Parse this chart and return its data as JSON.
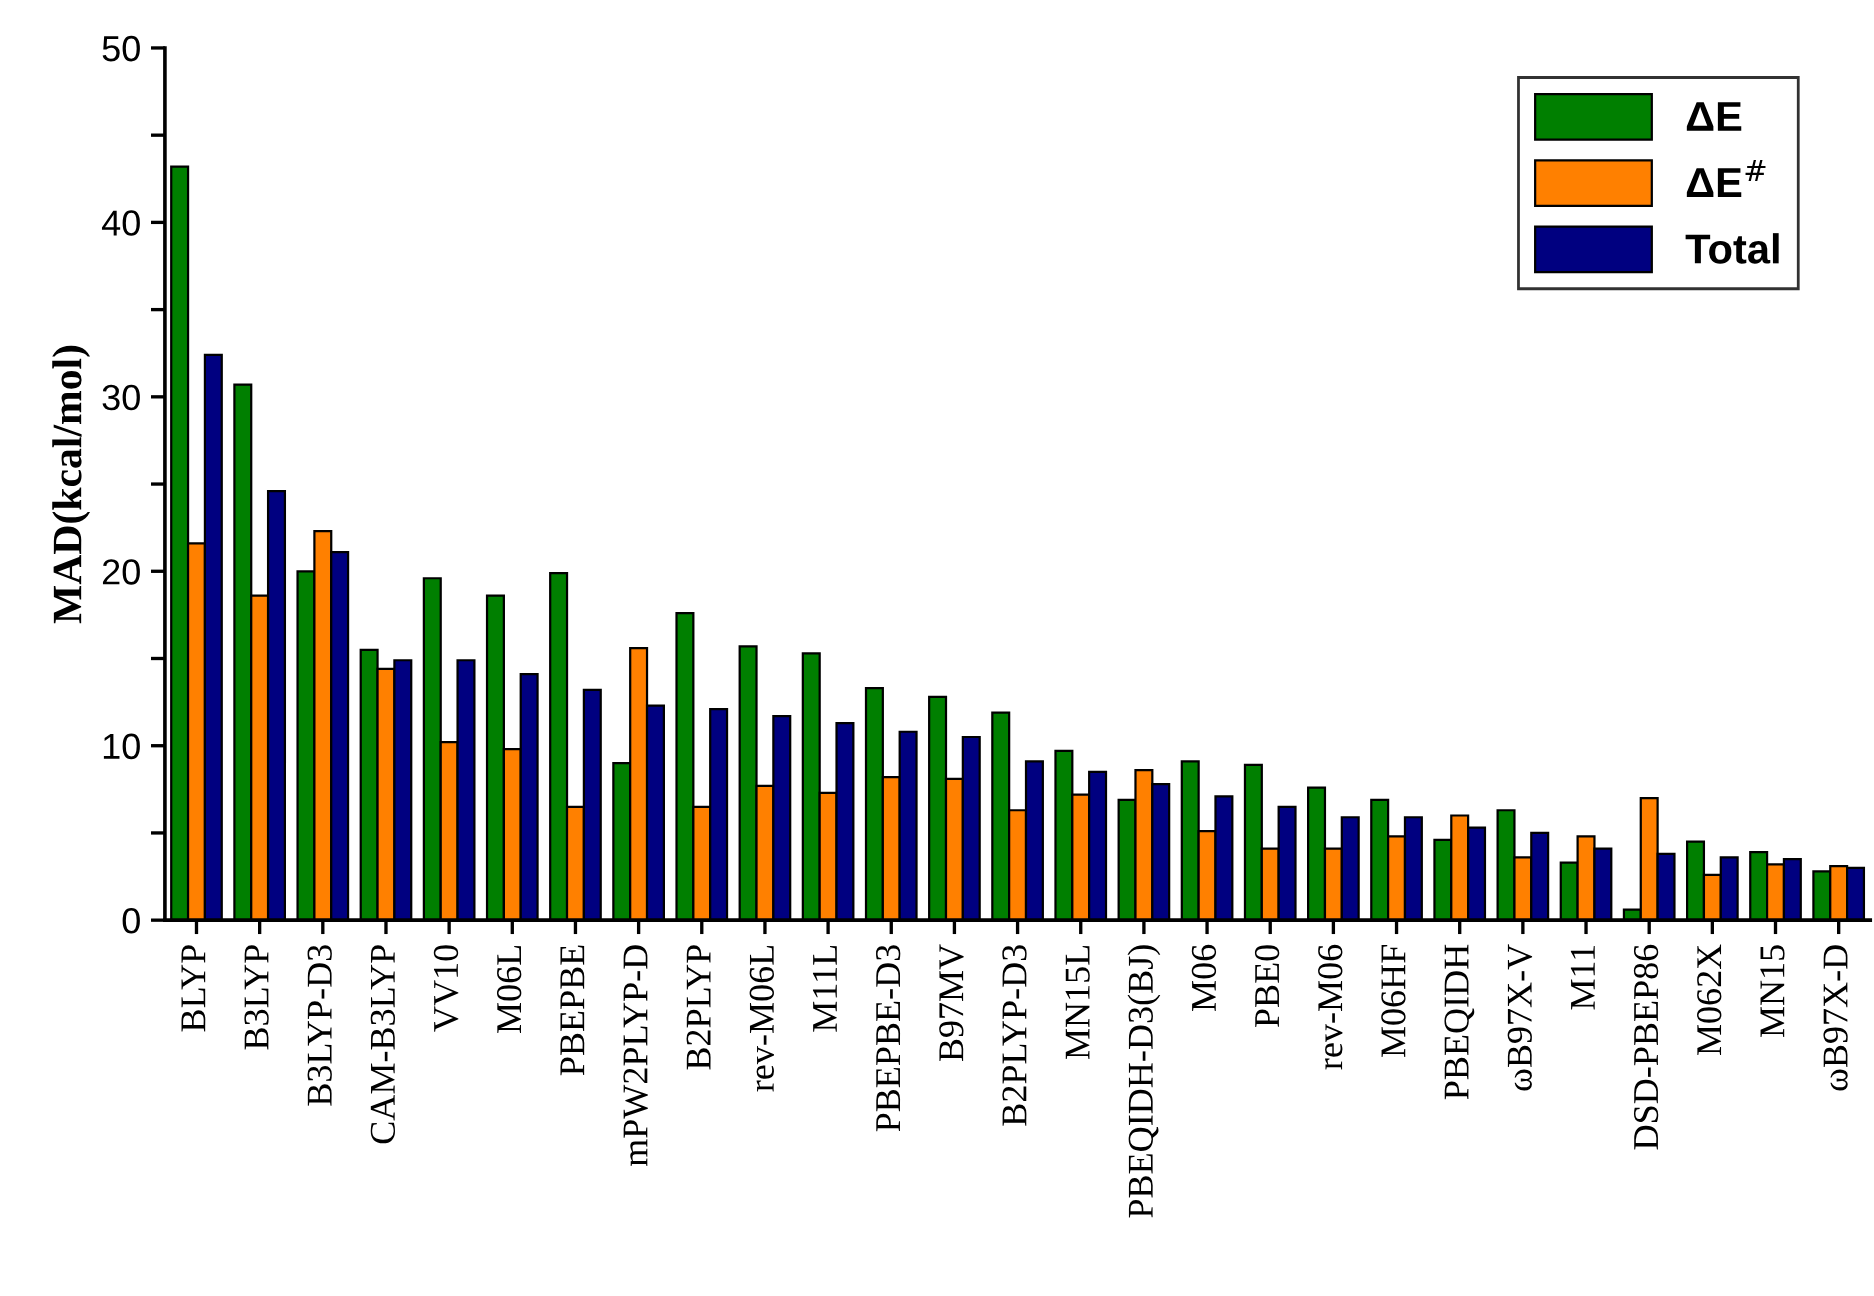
{
  "chart_data": {
    "type": "bar",
    "ylabel": "MAD(kcal/mol)",
    "categories": [
      "BLYP",
      "B3LYP",
      "B3LYP-D3",
      "CAM-B3LYP",
      "VV10",
      "M06L",
      "PBEPBE",
      "mPW2PLYP-D",
      "B2PLYP",
      "rev-M06L",
      "M11L",
      "PBEPBE-D3",
      "B97MV",
      "B2PLYP-D3",
      "MN15L",
      "PBEQIDH-D3(BJ)",
      "M06",
      "PBE0",
      "rev-M06",
      "M06HF",
      "PBEQIDH",
      "ωB97X-V",
      "M11",
      "DSD-PBEP86",
      "M062X",
      "MN15",
      "ωB97X-D"
    ],
    "series": [
      {
        "name": "ΔE",
        "color": "#007f00",
        "values": [
          43.2,
          30.7,
          20.0,
          15.5,
          19.6,
          18.6,
          19.9,
          9.0,
          17.6,
          15.7,
          15.3,
          13.3,
          12.8,
          11.9,
          9.7,
          6.9,
          9.1,
          8.9,
          7.6,
          6.9,
          4.6,
          6.3,
          3.3,
          0.6,
          4.5,
          3.9,
          2.8
        ]
      },
      {
        "name": "ΔE$^{#}$",
        "color": "#ff8000",
        "values": [
          21.6,
          18.6,
          22.3,
          14.4,
          10.2,
          9.8,
          6.5,
          15.6,
          6.5,
          7.7,
          7.3,
          8.2,
          8.1,
          6.3,
          7.2,
          8.6,
          5.1,
          4.1,
          4.1,
          4.8,
          6.0,
          3.6,
          4.8,
          7.0,
          2.6,
          3.2,
          3.1
        ]
      },
      {
        "name": "Total",
        "color": "#000080",
        "values": [
          32.4,
          24.6,
          21.1,
          14.9,
          14.9,
          14.1,
          13.2,
          12.3,
          12.1,
          11.7,
          11.3,
          10.8,
          10.5,
          9.1,
          8.5,
          7.8,
          7.1,
          6.5,
          5.9,
          5.9,
          5.3,
          5.0,
          4.1,
          3.8,
          3.6,
          3.5,
          3.0
        ]
      }
    ],
    "ylim": [
      0,
      50
    ],
    "yticks": [
      0,
      {
        "value": 5,
        "label": null
      },
      10,
      {
        "value": 15,
        "label": null
      },
      20,
      {
        "value": 25,
        "label": null
      },
      30,
      {
        "value": 35,
        "label": null
      },
      40,
      {
        "value": 45,
        "label": null
      },
      50
    ],
    "grid": false,
    "legend": "top right"
  }
}
